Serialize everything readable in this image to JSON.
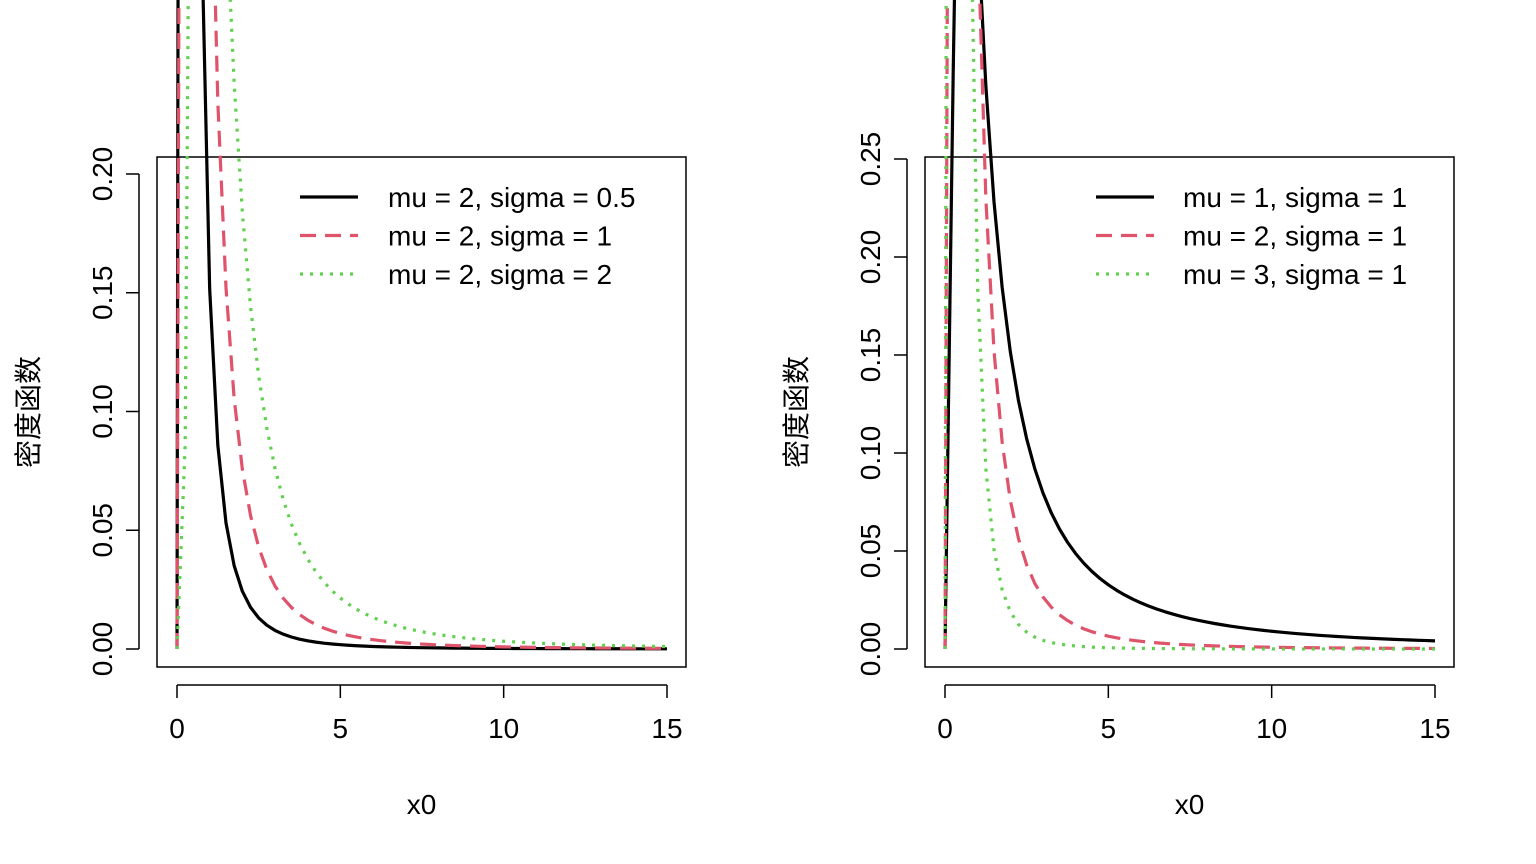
{
  "chart_data": [
    {
      "type": "line",
      "title": "",
      "xlabel": "x0",
      "ylabel": "密度函数",
      "xlim": [
        0,
        15
      ],
      "ylim": [
        0,
        0.2
      ],
      "xticks": [
        0,
        5,
        10,
        15
      ],
      "yticks": [
        0.0,
        0.05,
        0.1,
        0.15,
        0.2
      ],
      "xtick_labels": [
        "0",
        "5",
        "10",
        "15"
      ],
      "ytick_labels": [
        "0.00",
        "0.05",
        "0.10",
        "0.15",
        "0.20"
      ],
      "grid": false,
      "legend_position": "top-right",
      "series": [
        {
          "name": "mu = 2, sigma = 0.5",
          "color": "#000000",
          "dash": "solid",
          "mu": 2,
          "sigma": 0.5
        },
        {
          "name": "mu = 2, sigma = 1",
          "color": "#DF536B",
          "dash": "dashed",
          "mu": 2,
          "sigma": 1
        },
        {
          "name": "mu = 2, sigma = 2",
          "color": "#61D04F",
          "dash": "dotted",
          "mu": 2,
          "sigma": 2
        }
      ]
    },
    {
      "type": "line",
      "title": "",
      "xlabel": "x0",
      "ylabel": "密度函数",
      "xlim": [
        0,
        15
      ],
      "ylim": [
        0,
        0.25
      ],
      "xticks": [
        0,
        5,
        10,
        15
      ],
      "yticks": [
        0.0,
        0.05,
        0.1,
        0.15,
        0.2,
        0.25
      ],
      "xtick_labels": [
        "0",
        "5",
        "10",
        "15"
      ],
      "ytick_labels": [
        "0.00",
        "0.05",
        "0.10",
        "0.15",
        "0.20",
        "0.25"
      ],
      "grid": false,
      "legend_position": "top-right",
      "series": [
        {
          "name": "mu = 1, sigma = 1",
          "color": "#000000",
          "dash": "solid",
          "mu": 1,
          "sigma": 1
        },
        {
          "name": "mu = 2, sigma = 1",
          "color": "#DF536B",
          "dash": "dashed",
          "mu": 2,
          "sigma": 1
        },
        {
          "name": "mu = 3, sigma = 1",
          "color": "#61D04F",
          "dash": "dotted",
          "mu": 3,
          "sigma": 1
        }
      ]
    }
  ]
}
